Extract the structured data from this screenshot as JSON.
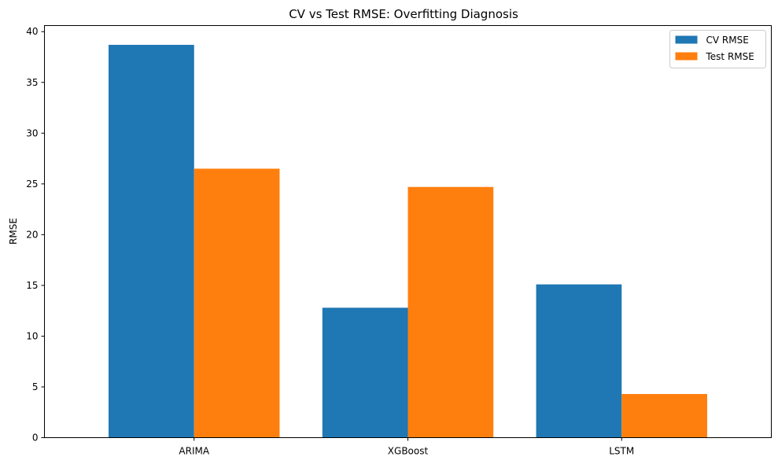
{
  "chart_data": {
    "type": "bar",
    "title": "CV vs Test RMSE: Overfitting Diagnosis",
    "xlabel": "",
    "ylabel": "RMSE",
    "categories": [
      "ARIMA",
      "XGBoost",
      "LSTM"
    ],
    "series": [
      {
        "name": "CV RMSE",
        "color": "#1f77b4",
        "values": [
          38.7,
          12.8,
          15.1
        ]
      },
      {
        "name": "Test RMSE",
        "color": "#ff7f0e",
        "values": [
          26.5,
          24.7,
          4.3
        ]
      }
    ],
    "ylim": [
      0,
      40.6
    ],
    "yticks": [
      0,
      5,
      10,
      15,
      20,
      25,
      30,
      35,
      40
    ],
    "grid": false,
    "legend_position": "top-right"
  }
}
